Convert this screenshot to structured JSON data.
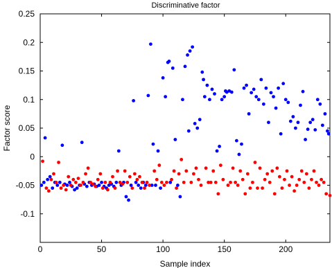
{
  "chart_data": {
    "type": "scatter",
    "title": "Discriminative factor",
    "xlabel": "Sample index",
    "ylabel": "Factor score",
    "xlim": [
      0,
      236
    ],
    "ylim": [
      -0.15,
      0.25
    ],
    "xticks": [
      0,
      50,
      100,
      150,
      200
    ],
    "yticks": [
      -0.1,
      -0.05,
      0,
      0.05,
      0.1,
      0.15,
      0.2,
      0.25
    ],
    "ytick_labels": [
      "-0.1",
      "-0.05",
      "0",
      "0.05",
      "0.1",
      "0.15",
      "0.2",
      "0.25"
    ],
    "grid": false,
    "series": [
      {
        "color": "#0000ff",
        "x": [
          1,
          3,
          4,
          6,
          8,
          10,
          12,
          14,
          16,
          18,
          20,
          22,
          24,
          26,
          28,
          30,
          32,
          34,
          36,
          38,
          40,
          42,
          44,
          46,
          48,
          50,
          52,
          54,
          56,
          58,
          60,
          62,
          64,
          66,
          68,
          70,
          72,
          74,
          76,
          78,
          80,
          82,
          84,
          86,
          88,
          90,
          91,
          92,
          94,
          96,
          98,
          100,
          102,
          104,
          105,
          106,
          108,
          110,
          112,
          114,
          116,
          118,
          120,
          121,
          122,
          124,
          126,
          128,
          130,
          132,
          133,
          134,
          136,
          138,
          140,
          142,
          144,
          146,
          148,
          150,
          151,
          152,
          154,
          156,
          158,
          160,
          162,
          164,
          166,
          168,
          170,
          172,
          174,
          176,
          178,
          180,
          182,
          184,
          186,
          188,
          190,
          192,
          194,
          196,
          198,
          200,
          202,
          204,
          206,
          208,
          210,
          212,
          214,
          216,
          218,
          220,
          222,
          224,
          226,
          228,
          230,
          232,
          234,
          235
        ],
        "y": [
          -0.05,
          -0.045,
          0.033,
          -0.04,
          -0.035,
          -0.055,
          -0.045,
          -0.05,
          -0.045,
          0.02,
          -0.048,
          -0.05,
          -0.045,
          -0.052,
          -0.058,
          -0.055,
          -0.05,
          0.025,
          -0.048,
          -0.052,
          -0.045,
          -0.05,
          -0.048,
          -0.052,
          -0.05,
          -0.045,
          -0.052,
          -0.055,
          -0.05,
          -0.048,
          -0.052,
          -0.045,
          0.01,
          -0.05,
          -0.045,
          -0.07,
          -0.076,
          -0.05,
          0.098,
          -0.045,
          -0.05,
          -0.055,
          -0.045,
          -0.05,
          0.107,
          0.197,
          -0.05,
          0.022,
          -0.05,
          0.01,
          -0.055,
          0.138,
          0.105,
          0.165,
          0.167,
          -0.045,
          0.155,
          0.03,
          -0.05,
          -0.07,
          0.1,
          0.158,
          0.178,
          0.045,
          0.185,
          0.192,
          0.058,
          0.05,
          0.065,
          0.148,
          0.135,
          0.105,
          0.125,
          0.1,
          0.118,
          0.11,
          0.01,
          0.018,
          0.1,
          0.105,
          0.115,
          0.113,
          0.115,
          0.113,
          0.152,
          0.028,
          0.004,
          0.022,
          0.12,
          0.125,
          0.075,
          0.112,
          0.118,
          0.105,
          0.1,
          0.135,
          0.092,
          0.12,
          0.06,
          0.112,
          0.105,
          0.085,
          0.12,
          0.04,
          0.128,
          0.1,
          0.095,
          0.062,
          0.07,
          0.05,
          0.06,
          0.09,
          0.114,
          0.03,
          0.048,
          0.06,
          0.065,
          0.047,
          0.1,
          0.092,
          0.055,
          0.075,
          0.045,
          0.04
        ]
      },
      {
        "color": "#ff0000",
        "x": [
          2,
          5,
          7,
          9,
          11,
          13,
          15,
          17,
          19,
          21,
          23,
          25,
          27,
          29,
          31,
          33,
          35,
          37,
          39,
          41,
          43,
          45,
          47,
          49,
          51,
          53,
          55,
          57,
          59,
          61,
          63,
          65,
          67,
          69,
          71,
          73,
          75,
          77,
          79,
          81,
          83,
          85,
          87,
          89,
          93,
          95,
          97,
          99,
          101,
          103,
          107,
          109,
          111,
          113,
          115,
          117,
          119,
          123,
          125,
          127,
          129,
          131,
          135,
          137,
          139,
          141,
          143,
          145,
          147,
          149,
          153,
          155,
          157,
          159,
          161,
          163,
          165,
          167,
          169,
          171,
          173,
          175,
          177,
          179,
          181,
          183,
          185,
          187,
          189,
          191,
          193,
          195,
          197,
          199,
          201,
          203,
          205,
          207,
          209,
          211,
          213,
          215,
          217,
          219,
          221,
          223,
          225,
          227,
          229,
          231,
          233,
          236
        ],
        "y": [
          -0.008,
          -0.055,
          -0.06,
          -0.04,
          -0.03,
          -0.045,
          -0.01,
          -0.055,
          -0.05,
          -0.058,
          -0.035,
          -0.05,
          -0.04,
          -0.045,
          -0.038,
          -0.05,
          -0.045,
          -0.03,
          -0.02,
          -0.045,
          -0.048,
          -0.052,
          -0.04,
          -0.03,
          -0.055,
          -0.045,
          -0.058,
          -0.045,
          -0.035,
          -0.055,
          -0.025,
          -0.045,
          -0.048,
          -0.025,
          -0.045,
          -0.035,
          -0.055,
          -0.03,
          -0.04,
          -0.035,
          -0.045,
          -0.055,
          -0.045,
          -0.05,
          -0.025,
          -0.04,
          -0.015,
          -0.045,
          -0.05,
          -0.045,
          -0.04,
          -0.025,
          -0.055,
          -0.03,
          -0.005,
          -0.045,
          -0.025,
          -0.045,
          -0.03,
          -0.02,
          -0.04,
          -0.05,
          -0.02,
          -0.045,
          -0.045,
          -0.025,
          -0.045,
          -0.065,
          -0.015,
          -0.04,
          -0.05,
          -0.045,
          -0.02,
          -0.045,
          -0.05,
          -0.025,
          -0.04,
          -0.065,
          -0.03,
          -0.055,
          -0.045,
          -0.01,
          -0.055,
          -0.02,
          -0.055,
          -0.04,
          -0.03,
          -0.045,
          -0.025,
          -0.065,
          -0.02,
          -0.035,
          -0.055,
          -0.04,
          -0.025,
          -0.05,
          -0.035,
          -0.06,
          -0.05,
          -0.04,
          -0.025,
          -0.045,
          -0.03,
          -0.055,
          -0.04,
          -0.025,
          -0.045,
          -0.05,
          -0.04,
          -0.045,
          -0.065,
          -0.068
        ]
      }
    ]
  }
}
